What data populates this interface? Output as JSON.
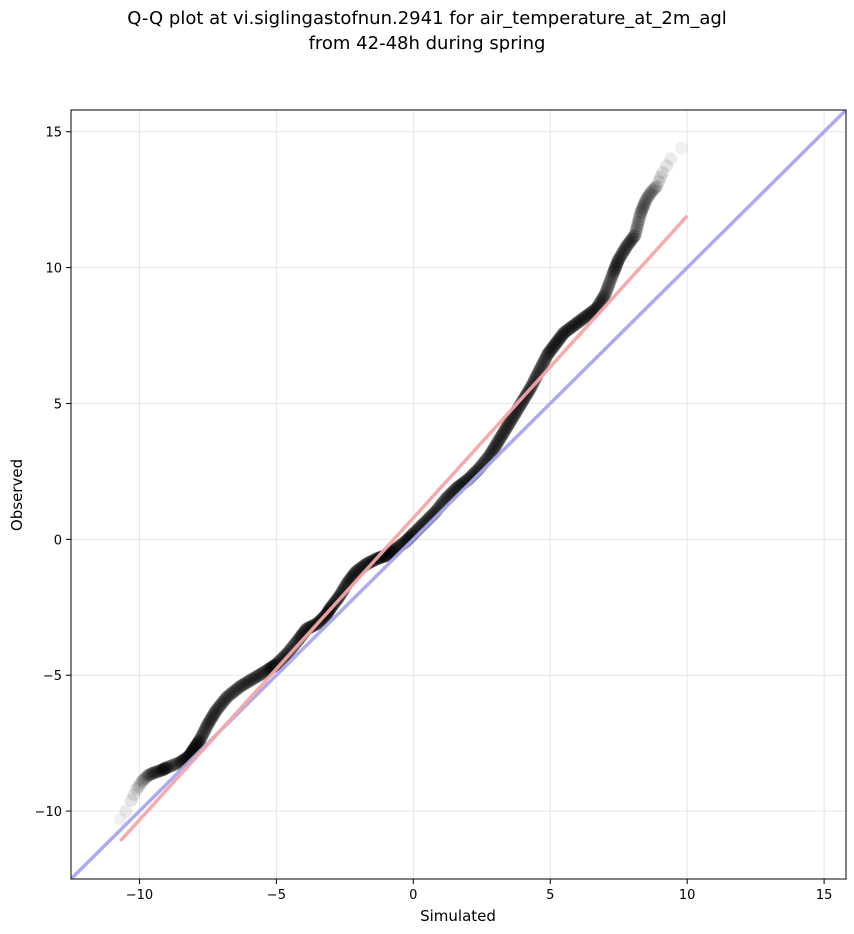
{
  "chart_data": {
    "type": "scatter",
    "title_line1": "Q-Q plot at vi.siglingastofnun.2941 for air_temperature_at_2m_agl",
    "title_line2": "from 42-48h during spring",
    "xlabel": "Simulated",
    "ylabel": "Observed",
    "xlim": [
      -12.5,
      15.8
    ],
    "ylim": [
      -12.5,
      15.8
    ],
    "xticks": [
      -10,
      -5,
      0,
      5,
      10,
      15
    ],
    "yticks": [
      -10,
      -5,
      0,
      5,
      10,
      15
    ],
    "xtick_labels": [
      "−10",
      "−5",
      "0",
      "5",
      "10",
      "15"
    ],
    "ytick_labels": [
      "−10",
      "−5",
      "0",
      "5",
      "10",
      "15"
    ],
    "grid": true,
    "quantile_curve": [
      [
        -10.7,
        -10.3
      ],
      [
        -10.5,
        -10.0
      ],
      [
        -10.3,
        -9.6
      ],
      [
        -10.1,
        -9.2
      ],
      [
        -9.9,
        -8.9
      ],
      [
        -9.7,
        -8.7
      ],
      [
        -9.5,
        -8.6
      ],
      [
        -9.2,
        -8.5
      ],
      [
        -9.0,
        -8.4
      ],
      [
        -8.5,
        -8.2
      ],
      [
        -8.2,
        -8.0
      ],
      [
        -8.0,
        -7.7
      ],
      [
        -7.8,
        -7.4
      ],
      [
        -7.5,
        -6.8
      ],
      [
        -7.2,
        -6.3
      ],
      [
        -6.8,
        -5.8
      ],
      [
        -6.3,
        -5.4
      ],
      [
        -5.8,
        -5.1
      ],
      [
        -5.3,
        -4.8
      ],
      [
        -5.0,
        -4.6
      ],
      [
        -4.6,
        -4.2
      ],
      [
        -4.2,
        -3.7
      ],
      [
        -3.9,
        -3.3
      ],
      [
        -3.5,
        -3.1
      ],
      [
        -3.2,
        -2.8
      ],
      [
        -3.0,
        -2.5
      ],
      [
        -2.7,
        -2.1
      ],
      [
        -2.4,
        -1.6
      ],
      [
        -2.1,
        -1.2
      ],
      [
        -1.7,
        -0.9
      ],
      [
        -1.3,
        -0.7
      ],
      [
        -1.0,
        -0.6
      ],
      [
        -0.7,
        -0.4
      ],
      [
        -0.3,
        -0.1
      ],
      [
        0.0,
        0.2
      ],
      [
        0.4,
        0.6
      ],
      [
        0.8,
        1.0
      ],
      [
        1.2,
        1.5
      ],
      [
        1.6,
        1.9
      ],
      [
        2.0,
        2.2
      ],
      [
        2.4,
        2.6
      ],
      [
        2.8,
        3.1
      ],
      [
        3.1,
        3.6
      ],
      [
        3.4,
        4.1
      ],
      [
        3.7,
        4.6
      ],
      [
        4.0,
        5.1
      ],
      [
        4.3,
        5.6
      ],
      [
        4.6,
        6.2
      ],
      [
        4.9,
        6.8
      ],
      [
        5.2,
        7.2
      ],
      [
        5.5,
        7.6
      ],
      [
        5.9,
        7.9
      ],
      [
        6.3,
        8.2
      ],
      [
        6.7,
        8.5
      ],
      [
        7.0,
        9.0
      ],
      [
        7.3,
        9.8
      ],
      [
        7.5,
        10.3
      ],
      [
        7.8,
        10.8
      ],
      [
        8.1,
        11.2
      ],
      [
        8.3,
        12.0
      ],
      [
        8.5,
        12.5
      ],
      [
        8.7,
        12.8
      ],
      [
        8.9,
        13.0
      ],
      [
        9.1,
        13.5
      ],
      [
        9.4,
        14.0
      ],
      [
        9.8,
        14.4
      ]
    ],
    "reference_line": {
      "color": "#a7a7f0",
      "x": [
        -12.5,
        15.8
      ],
      "y": [
        -12.5,
        15.8
      ]
    },
    "fit_line": {
      "color": "#f4a6a6",
      "x": [
        -10.7,
        10.0
      ],
      "y": [
        -11.1,
        11.9
      ]
    },
    "point_color": "#000000"
  }
}
